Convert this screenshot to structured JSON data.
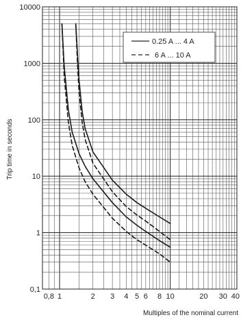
{
  "chart_data": {
    "type": "line",
    "title": "",
    "xlabel": "Multiples of the nominal current",
    "ylabel": "Trip time in seconds",
    "x_scale": "log",
    "y_scale": "log",
    "xlim": [
      0.7,
      40
    ],
    "ylim": [
      0.1,
      10000
    ],
    "x_ticks": [
      {
        "value": 0.8,
        "label": "0,8"
      },
      {
        "value": 1,
        "label": "1"
      },
      {
        "value": 2,
        "label": "2"
      },
      {
        "value": 3,
        "label": "3"
      },
      {
        "value": 4,
        "label": "4"
      },
      {
        "value": 5,
        "label": "5"
      },
      {
        "value": 6,
        "label": "6"
      },
      {
        "value": 8,
        "label": "8"
      },
      {
        "value": 10,
        "label": "10"
      },
      {
        "value": 20,
        "label": "20"
      },
      {
        "value": 30,
        "label": "30"
      },
      {
        "value": 40,
        "label": "40"
      }
    ],
    "y_ticks": [
      {
        "value": 0.1,
        "label": "0,1"
      },
      {
        "value": 1,
        "label": "1"
      },
      {
        "value": 10,
        "label": "10"
      },
      {
        "value": 100,
        "label": "100"
      },
      {
        "value": 1000,
        "label": "1000"
      },
      {
        "value": 10000,
        "label": "10000"
      }
    ],
    "grid": true,
    "legend_position": "top-right",
    "legend": [
      {
        "label": "0.25 A ... 4 A",
        "style": "solid"
      },
      {
        "label": "6 A ... 10 A",
        "style": "dashed"
      }
    ],
    "series": [
      {
        "style": "solid",
        "x": [
          1.05,
          1.1,
          1.2,
          1.3,
          1.5,
          1.7,
          2,
          3,
          4,
          5,
          6,
          8,
          10
        ],
        "y": [
          5000,
          900,
          150,
          60,
          25,
          15,
          9,
          3.4,
          1.9,
          1.35,
          1.05,
          0.72,
          0.55
        ]
      },
      {
        "style": "solid",
        "x": [
          1.4,
          1.45,
          1.5,
          1.6,
          1.7,
          2,
          3,
          4,
          5,
          6,
          8,
          10
        ],
        "y": [
          5000,
          1500,
          500,
          140,
          70,
          27,
          8.5,
          4.8,
          3.4,
          2.7,
          1.9,
          1.45
        ]
      },
      {
        "style": "dashed",
        "x": [
          1.05,
          1.1,
          1.2,
          1.3,
          1.5,
          1.7,
          2,
          3,
          4,
          5,
          6,
          8,
          10
        ],
        "y": [
          5000,
          600,
          90,
          35,
          14,
          8,
          4.8,
          1.8,
          1.05,
          0.75,
          0.6,
          0.42,
          0.3
        ]
      },
      {
        "style": "dashed",
        "x": [
          1.4,
          1.45,
          1.5,
          1.6,
          1.7,
          2,
          3,
          4,
          5,
          6,
          8,
          10
        ],
        "y": [
          5000,
          1000,
          300,
          90,
          45,
          17,
          5.3,
          2.9,
          2.05,
          1.6,
          1.05,
          0.75
        ]
      }
    ]
  }
}
